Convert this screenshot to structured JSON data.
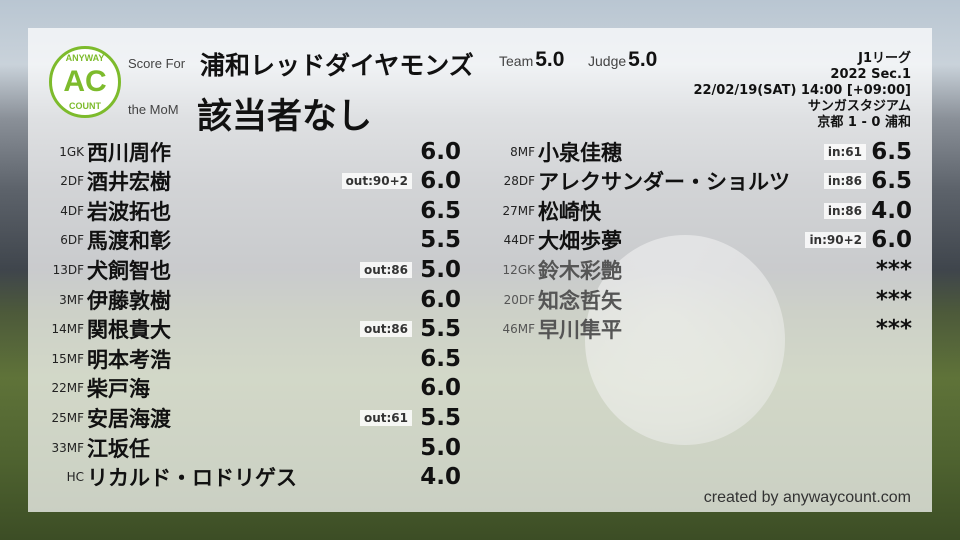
{
  "header": {
    "logo_text": "ANYWAY AC COUNT",
    "logo_main": "AC",
    "logo_top": "ANYWAY",
    "logo_bottom": "COUNT",
    "score_for_label": "Score For",
    "team_name": "浦和レッドダイヤモンズ",
    "mom_label": "the MoM",
    "mom_value": "該当者なし",
    "team_label": "Team",
    "team_score": "5.0",
    "judge_label": "Judge",
    "judge_score": "5.0"
  },
  "match": {
    "league": "J1リーグ",
    "season": "2022 Sec.1",
    "datetime": "22/02/19(SAT) 14:00 [+09:00]",
    "stadium": "サンガスタジアム",
    "result": "京都 1 - 0 浦和"
  },
  "left_players": [
    {
      "num": "1",
      "pos": "GK",
      "name": "西川周作",
      "sub": "",
      "score": "6.0"
    },
    {
      "num": "2",
      "pos": "DF",
      "name": "酒井宏樹",
      "sub": "out:90+2",
      "score": "6.0"
    },
    {
      "num": "4",
      "pos": "DF",
      "name": "岩波拓也",
      "sub": "",
      "score": "6.5"
    },
    {
      "num": "6",
      "pos": "DF",
      "name": "馬渡和彰",
      "sub": "",
      "score": "5.5"
    },
    {
      "num": "13",
      "pos": "DF",
      "name": "犬飼智也",
      "sub": "out:86",
      "score": "5.0"
    },
    {
      "num": "3",
      "pos": "MF",
      "name": "伊藤敦樹",
      "sub": "",
      "score": "6.0"
    },
    {
      "num": "14",
      "pos": "MF",
      "name": "関根貴大",
      "sub": "out:86",
      "score": "5.5"
    },
    {
      "num": "15",
      "pos": "MF",
      "name": "明本考浩",
      "sub": "",
      "score": "6.5"
    },
    {
      "num": "22",
      "pos": "MF",
      "name": "柴戸海",
      "sub": "",
      "score": "6.0"
    },
    {
      "num": "25",
      "pos": "MF",
      "name": "安居海渡",
      "sub": "out:61",
      "score": "5.5"
    },
    {
      "num": "33",
      "pos": "MF",
      "name": "江坂任",
      "sub": "",
      "score": "5.0"
    },
    {
      "num": "",
      "pos": "HC",
      "name": "リカルド・ロドリゲス",
      "sub": "",
      "score": "4.0"
    }
  ],
  "right_players": [
    {
      "num": "8",
      "pos": "MF",
      "name": "小泉佳穂",
      "sub": "in:61",
      "score": "6.5"
    },
    {
      "num": "28",
      "pos": "DF",
      "name": "アレクサンダー・ショルツ",
      "sub": "in:86",
      "score": "6.5"
    },
    {
      "num": "27",
      "pos": "MF",
      "name": "松崎快",
      "sub": "in:86",
      "score": "4.0"
    },
    {
      "num": "44",
      "pos": "DF",
      "name": "大畑歩夢",
      "sub": "in:90+2",
      "score": "6.0"
    },
    {
      "num": "12",
      "pos": "GK",
      "name": "鈴木彩艶",
      "sub": "",
      "score": "***",
      "unused": true
    },
    {
      "num": "20",
      "pos": "DF",
      "name": "知念哲矢",
      "sub": "",
      "score": "***",
      "unused": true
    },
    {
      "num": "46",
      "pos": "MF",
      "name": "早川隼平",
      "sub": "",
      "score": "***",
      "unused": true
    }
  ],
  "footer": {
    "credit": "created by anywaycount.com"
  },
  "colors": {
    "logo_green": "#7dbb2c"
  }
}
